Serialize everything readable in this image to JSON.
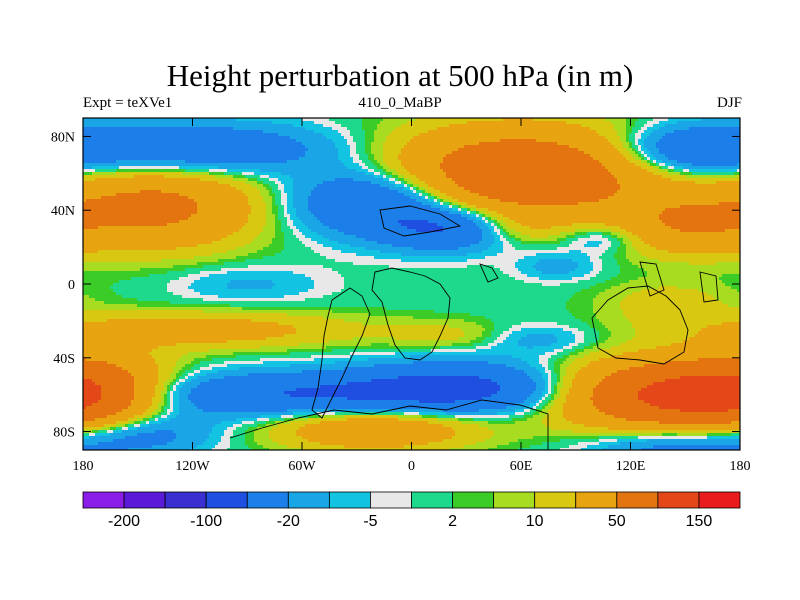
{
  "chart_data": {
    "type": "heatmap",
    "title": "Height perturbation at 500 hPa (in m)",
    "left_label": "Expt = teXVe1",
    "center_label": "410_0_MaBP",
    "right_label": "DJF",
    "x_ticks": [
      {
        "value": -180,
        "label": "180"
      },
      {
        "value": -120,
        "label": "120W"
      },
      {
        "value": -60,
        "label": "60W"
      },
      {
        "value": 0,
        "label": "0"
      },
      {
        "value": 60,
        "label": "60E"
      },
      {
        "value": 120,
        "label": "120E"
      },
      {
        "value": 180,
        "label": "180"
      }
    ],
    "y_ticks": [
      {
        "value": 80,
        "label": "80N"
      },
      {
        "value": 40,
        "label": "40N"
      },
      {
        "value": 0,
        "label": "0"
      },
      {
        "value": -40,
        "label": "40S"
      },
      {
        "value": -80,
        "label": "80S"
      }
    ],
    "xlim": [
      -180,
      180
    ],
    "ylim": [
      -90,
      90
    ],
    "colorbar": {
      "colors": [
        "#8a1de6",
        "#5a1ad8",
        "#3a2fd0",
        "#1f4fe0",
        "#1c7ee8",
        "#1aa6e6",
        "#12c4e2",
        "#e8e8e8",
        "#1ed88c",
        "#3ccc28",
        "#a8dc20",
        "#d8c812",
        "#e8a410",
        "#e47410",
        "#e44818",
        "#e81c1c"
      ],
      "labels": [
        {
          "after_box": 1,
          "text": "-200"
        },
        {
          "after_box": 3,
          "text": "-100"
        },
        {
          "after_box": 5,
          "text": "-20"
        },
        {
          "after_box": 7,
          "text": "-5"
        },
        {
          "after_box": 9,
          "text": "2"
        },
        {
          "after_box": 11,
          "text": "10"
        },
        {
          "after_box": 13,
          "text": "50"
        },
        {
          "after_box": 15,
          "text": "150"
        }
      ]
    },
    "field_blobs": [
      {
        "lon": -125,
        "lat": 73,
        "rx": 85,
        "ry": 14,
        "v": -45
      },
      {
        "lon": 105,
        "lat": 25,
        "rx": 22,
        "ry": 8,
        "v": -20
      },
      {
        "lon": 150,
        "lat": 72,
        "rx": 40,
        "ry": 14,
        "v": -40
      },
      {
        "lon": -20,
        "lat": 45,
        "rx": 45,
        "ry": 18,
        "v": -60
      },
      {
        "lon": 20,
        "lat": 30,
        "rx": 35,
        "ry": 12,
        "v": -50
      },
      {
        "lon": -140,
        "lat": 42,
        "rx": 55,
        "ry": 22,
        "v": 60
      },
      {
        "lon": 60,
        "lat": 60,
        "rx": 75,
        "ry": 24,
        "v": 90
      },
      {
        "lon": 150,
        "lat": 32,
        "rx": 40,
        "ry": 16,
        "v": 40
      },
      {
        "lon": 55,
        "lat": 30,
        "rx": 25,
        "ry": 8,
        "v": 12
      },
      {
        "lon": 80,
        "lat": 10,
        "rx": 22,
        "ry": 8,
        "v": -15
      },
      {
        "lon": -90,
        "lat": 0,
        "rx": 40,
        "ry": 10,
        "v": -12
      },
      {
        "lon": 140,
        "lat": -10,
        "rx": 38,
        "ry": 12,
        "v": 15
      },
      {
        "lon": -120,
        "lat": -25,
        "rx": 90,
        "ry": 10,
        "v": 30
      },
      {
        "lon": 20,
        "lat": -28,
        "rx": 35,
        "ry": 8,
        "v": 12
      },
      {
        "lon": 70,
        "lat": -30,
        "rx": 30,
        "ry": 8,
        "v": -15
      },
      {
        "lon": -175,
        "lat": -60,
        "rx": 40,
        "ry": 20,
        "v": 70
      },
      {
        "lon": 140,
        "lat": -60,
        "rx": 60,
        "ry": 18,
        "v": 110
      },
      {
        "lon": -60,
        "lat": -60,
        "rx": 120,
        "ry": 12,
        "v": -50
      },
      {
        "lon": 30,
        "lat": -55,
        "rx": 60,
        "ry": 14,
        "v": -45
      },
      {
        "lon": -20,
        "lat": -78,
        "rx": 55,
        "ry": 12,
        "v": 45
      },
      {
        "lon": -150,
        "lat": -80,
        "rx": 40,
        "ry": 12,
        "v": -35
      },
      {
        "lon": 150,
        "lat": -88,
        "rx": 50,
        "ry": 12,
        "v": -35
      }
    ],
    "contour_levels": [
      -200,
      -150,
      -100,
      -50,
      -20,
      -10,
      -5,
      -2,
      2,
      5,
      10,
      20,
      50,
      100,
      150
    ]
  }
}
